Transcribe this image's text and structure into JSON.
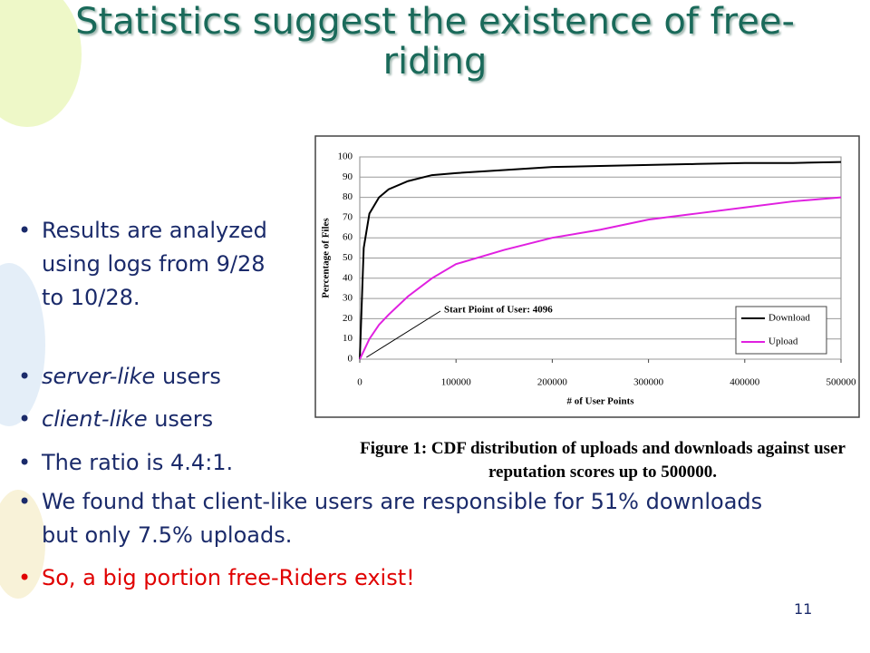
{
  "title": "Statistics suggest the existence of free-riding",
  "bullets": [
    {
      "text": "Results are analyzed using logs from 9/28 to 10/28."
    },
    {
      "em": "server-like",
      "text": "users"
    },
    {
      "em": "client-like",
      "text": "users"
    },
    {
      "text": "The ratio is 4.4:1."
    },
    {
      "text": "We found that client-like users are responsible for 51% downloads but only 7.5% uploads."
    },
    {
      "text": "So, a big portion free-Riders exist!"
    }
  ],
  "chart_data": {
    "type": "line",
    "xlabel": "# of User Points",
    "ylabel": "Percentage of Files",
    "x": [
      0,
      4096,
      10000,
      20000,
      30000,
      50000,
      75000,
      100000,
      150000,
      200000,
      250000,
      300000,
      350000,
      400000,
      450000,
      500000
    ],
    "series": [
      {
        "name": "Download",
        "color": "#000000",
        "values": [
          0,
          55,
          72,
          80,
          84,
          88,
          91,
          92,
          93.5,
          95,
          95.5,
          96,
          96.5,
          97,
          97,
          97.5
        ]
      },
      {
        "name": "Upload",
        "color": "#e020e0",
        "values": [
          0,
          4,
          10,
          17,
          22,
          31,
          40,
          47,
          54,
          60,
          64,
          69,
          72,
          75,
          78,
          80
        ]
      }
    ],
    "xlim": [
      0,
      500000
    ],
    "xticks": [
      0,
      100000,
      200000,
      300000,
      400000,
      500000
    ],
    "ylim": [
      0,
      100
    ],
    "yticks": [
      0,
      10,
      20,
      30,
      40,
      50,
      60,
      70,
      80,
      90,
      100
    ],
    "grid": true,
    "legend": "lower right",
    "annotation": {
      "text": "Start Pioint of User: 4096",
      "x": 4096,
      "y": 0
    }
  },
  "caption": "Figure 1: CDF distribution of uploads and downloads against user reputation scores up to 500000.",
  "page_number": "11"
}
